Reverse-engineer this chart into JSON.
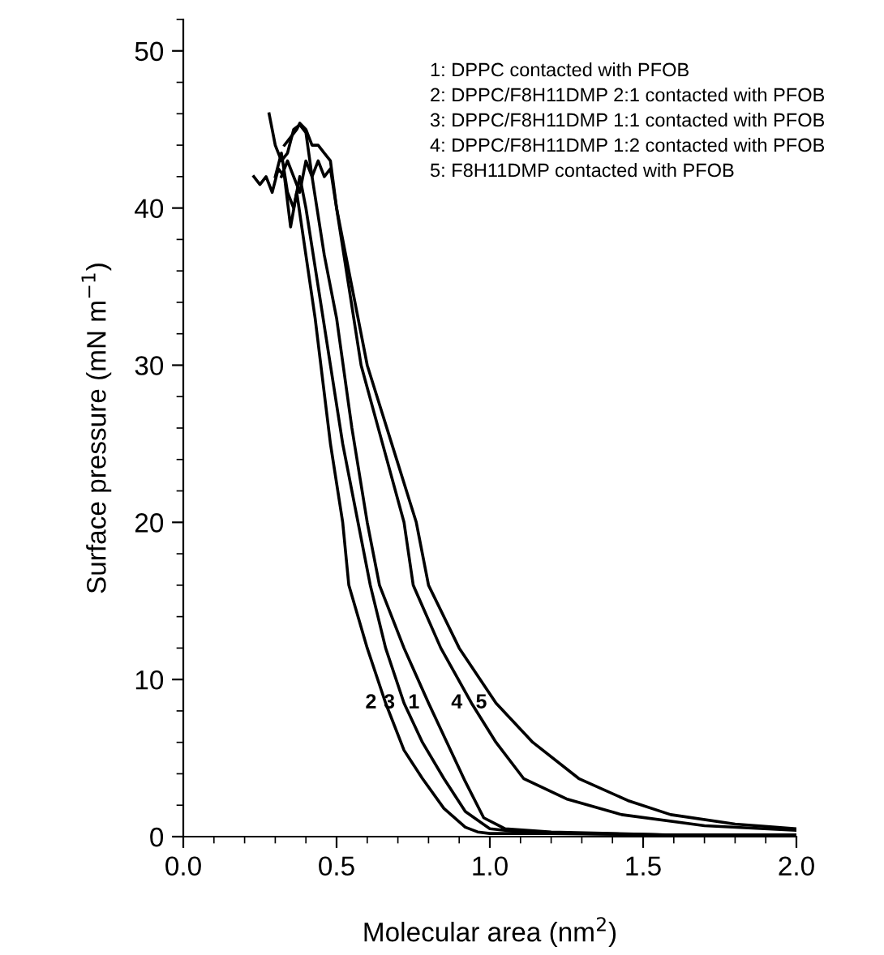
{
  "chart_data": {
    "type": "line",
    "xlabel": "Molecular area (nm$^{2}$)",
    "ylabel": "Surface pressure (mN m$^{−1}$)",
    "xlim": [
      0,
      2.0
    ],
    "ylim": [
      0,
      52
    ],
    "xticks": [
      {
        "value": 0,
        "label": "0.0"
      },
      {
        "value": 0.5,
        "label": "0.5"
      },
      {
        "value": 1.0,
        "label": "1.0"
      },
      {
        "value": 1.5,
        "label": "1.5"
      },
      {
        "value": 2.0,
        "label": "2.0"
      }
    ],
    "yticks": [
      0,
      10,
      20,
      30,
      40,
      50
    ],
    "grid": false,
    "legend": false,
    "marker": "none",
    "line_style": "solid",
    "series": [
      {
        "name": "1",
        "color": "#000000",
        "x": [
          0.28,
          0.3,
          0.32,
          0.34,
          0.36,
          0.38,
          0.4,
          0.42,
          0.46,
          0.5,
          0.55,
          0.6,
          0.64,
          0.72,
          0.8,
          0.86,
          0.92,
          0.98,
          1.05,
          1.2,
          1.6,
          2.0
        ],
        "values": [
          46,
          44,
          43,
          43.5,
          45,
          45.3,
          44.8,
          42,
          37,
          33,
          26,
          20,
          16,
          12,
          8.5,
          6,
          3.5,
          1.2,
          0.5,
          0.3,
          0.1,
          0.1
        ]
      },
      {
        "name": "2",
        "color": "#000000",
        "x": [
          0.23,
          0.25,
          0.27,
          0.29,
          0.31,
          0.33,
          0.35,
          0.37,
          0.4,
          0.43,
          0.48,
          0.52,
          0.54,
          0.6,
          0.66,
          0.72,
          0.78,
          0.85,
          0.92,
          0.96,
          1.0,
          1.2,
          1.6,
          2.0
        ],
        "values": [
          42,
          41.5,
          42,
          41,
          42.5,
          42,
          38.8,
          41,
          37,
          33,
          25,
          20,
          16,
          12,
          8.5,
          5.5,
          3.7,
          1.8,
          0.6,
          0.3,
          0.2,
          0.2,
          0.1,
          0.1
        ]
      },
      {
        "name": "3",
        "color": "#000000",
        "x": [
          0.3,
          0.32,
          0.34,
          0.36,
          0.38,
          0.4,
          0.44,
          0.48,
          0.52,
          0.57,
          0.61,
          0.66,
          0.72,
          0.78,
          0.85,
          0.92,
          1.0,
          1.1,
          1.3,
          1.6,
          2.0
        ],
        "values": [
          42,
          43.5,
          41,
          40,
          42,
          40,
          35,
          30,
          25,
          20,
          16,
          12,
          8.5,
          6,
          3.7,
          1.6,
          0.5,
          0.3,
          0.2,
          0.1,
          0.1
        ]
      },
      {
        "name": "4",
        "color": "#000000",
        "x": [
          0.32,
          0.34,
          0.36,
          0.38,
          0.4,
          0.42,
          0.44,
          0.46,
          0.48,
          0.5,
          0.54,
          0.58,
          0.65,
          0.72,
          0.75,
          0.84,
          0.94,
          1.02,
          1.11,
          1.25,
          1.43,
          1.7,
          2.0
        ],
        "values": [
          42,
          43,
          42,
          41,
          43,
          42,
          43,
          42,
          42.5,
          40,
          35,
          30,
          25,
          20,
          16,
          12,
          8.5,
          6,
          3.7,
          2.4,
          1.4,
          0.7,
          0.4
        ]
      },
      {
        "name": "5",
        "color": "#000000",
        "x": [
          0.33,
          0.35,
          0.37,
          0.38,
          0.4,
          0.42,
          0.44,
          0.46,
          0.48,
          0.5,
          0.55,
          0.6,
          0.68,
          0.76,
          0.8,
          0.9,
          1.02,
          1.14,
          1.29,
          1.45,
          1.59,
          1.8,
          2.0
        ],
        "values": [
          44,
          44.5,
          45,
          45.4,
          45,
          44,
          44,
          43.5,
          43,
          40,
          35,
          30,
          25,
          20,
          16,
          12,
          8.5,
          6,
          3.7,
          2.3,
          1.4,
          0.8,
          0.5
        ]
      }
    ],
    "annotations": [
      "1: DPPC contacted with PFOB",
      "2: DPPC/F8H11DMP 2:1 contacted with PFOB",
      "3: DPPC/F8H11DMP 1:1 contacted with PFOB",
      "4: DPPC/F8H11DMP 1:2 contacted with PFOB",
      "5: F8H11DMP contacted with PFOB"
    ]
  }
}
